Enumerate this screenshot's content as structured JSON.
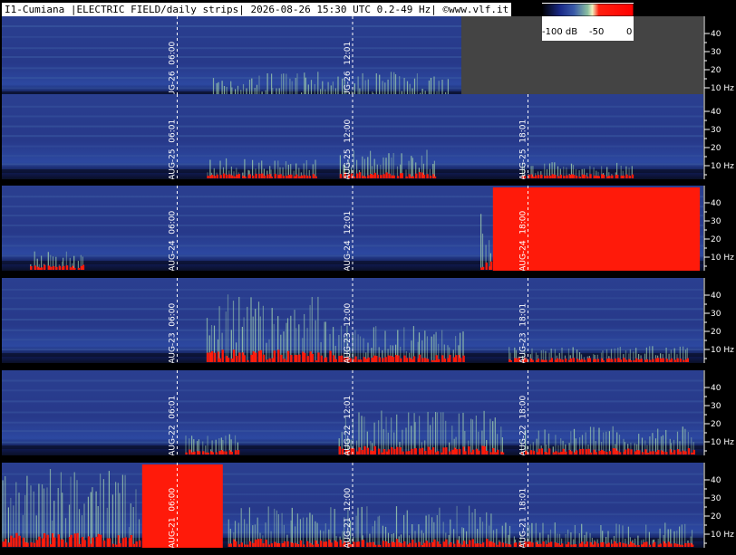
{
  "title": "I1-Cumiana |ELECTRIC FIELD/daily strips| 2026-08-26 15:30 UTC 0.2-49 Hz| ©www.vlf.it",
  "color_scale": {
    "labels": [
      "-100 dB",
      "-50",
      "0"
    ],
    "colors": [
      "#000000",
      "#1a2a88",
      "#3a5aa8",
      "#8ac0a0",
      "#f0f0c0",
      "#ff2010",
      "#ff0000"
    ]
  },
  "colors": {
    "background": "#1e2a80",
    "band": "#3a58a0",
    "hot": "#ff1a0a",
    "green": "#a8d8b0",
    "dark": "#0a1028",
    "axis_panel": "#000000",
    "empty_area": "#444444"
  },
  "chart_data": {
    "type": "heatmap",
    "y_axis": {
      "ticks": [
        "40",
        "30",
        "20",
        "10 Hz"
      ],
      "range": [
        0.2,
        49
      ],
      "unit": "Hz"
    },
    "strips": [
      {
        "date": "AUG-26",
        "markers": [
          {
            "date": "AUG-26",
            "time": "06:00",
            "frac": 0.25
          },
          {
            "date": "AUG-26",
            "time": "12:01",
            "frac": 0.5
          }
        ],
        "data_until": 0.655,
        "activity": [
          {
            "start": 0.3,
            "end": 0.64,
            "level": 0.35
          }
        ],
        "saturated": []
      },
      {
        "date": "AUG-25",
        "markers": [
          {
            "date": "AUG-25",
            "time": "06:01",
            "frac": 0.25
          },
          {
            "date": "AUG-25",
            "time": "12:00",
            "frac": 0.5
          },
          {
            "date": "AUG-25",
            "time": "18:01",
            "frac": 0.75
          }
        ],
        "data_until": 1.0,
        "activity": [
          {
            "start": 0.29,
            "end": 0.45,
            "level": 0.25
          },
          {
            "start": 0.48,
            "end": 0.62,
            "level": 0.35
          },
          {
            "start": 0.74,
            "end": 0.9,
            "level": 0.2
          }
        ],
        "saturated": []
      },
      {
        "date": "AUG-24",
        "markers": [
          {
            "date": "AUG-24",
            "time": "06:00",
            "frac": 0.25
          },
          {
            "date": "AUG-24",
            "time": "12:01",
            "frac": 0.5
          },
          {
            "date": "AUG-24",
            "time": "18:00",
            "frac": 0.75
          }
        ],
        "data_until": 1.0,
        "activity": [
          {
            "start": 0.04,
            "end": 0.12,
            "level": 0.25
          },
          {
            "start": 0.68,
            "end": 0.72,
            "level": 0.7
          }
        ],
        "saturated": [
          {
            "start": 0.7,
            "end": 0.995,
            "top": 0.0
          }
        ]
      },
      {
        "date": "AUG-23",
        "markers": [
          {
            "date": "AUG-23",
            "time": "06:00",
            "frac": 0.25
          },
          {
            "date": "AUG-23",
            "time": "12:00",
            "frac": 0.5
          },
          {
            "date": "AUG-23",
            "time": "18:01",
            "frac": 0.75
          }
        ],
        "data_until": 1.0,
        "activity": [
          {
            "start": 0.29,
            "end": 0.47,
            "level": 0.85
          },
          {
            "start": 0.47,
            "end": 0.66,
            "level": 0.45
          },
          {
            "start": 0.72,
            "end": 0.98,
            "level": 0.2
          }
        ],
        "saturated": []
      },
      {
        "date": "AUG-22",
        "markers": [
          {
            "date": "AUG-22",
            "time": "06:01",
            "frac": 0.25
          },
          {
            "date": "AUG-22",
            "time": "12:01",
            "frac": 0.5
          },
          {
            "date": "AUG-22",
            "time": "18:00",
            "frac": 0.75
          }
        ],
        "data_until": 1.0,
        "activity": [
          {
            "start": 0.26,
            "end": 0.34,
            "level": 0.25
          },
          {
            "start": 0.48,
            "end": 0.72,
            "level": 0.55
          },
          {
            "start": 0.74,
            "end": 0.99,
            "level": 0.35
          }
        ],
        "saturated": []
      },
      {
        "date": "AUG-21",
        "markers": [
          {
            "date": "AUG-21",
            "time": "06:00",
            "frac": 0.25
          },
          {
            "date": "AUG-21",
            "time": "12:00",
            "frac": 0.5
          },
          {
            "date": "AUG-21",
            "time": "18:01",
            "frac": 0.75
          }
        ],
        "data_until": 1.0,
        "activity": [
          {
            "start": 0.0,
            "end": 0.2,
            "level": 0.95
          },
          {
            "start": 0.32,
            "end": 0.7,
            "level": 0.5
          },
          {
            "start": 0.7,
            "end": 0.99,
            "level": 0.3
          }
        ],
        "saturated": [
          {
            "start": 0.2,
            "end": 0.315,
            "top": 0.0
          }
        ]
      }
    ]
  }
}
